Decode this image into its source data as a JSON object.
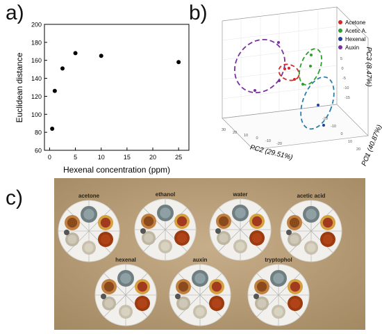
{
  "panels": {
    "a": "a)",
    "b": "b)",
    "c": "c)"
  },
  "chart_data": [
    {
      "type": "scatter",
      "x": [
        0.5,
        1,
        2.5,
        5,
        10,
        25
      ],
      "y": [
        84,
        126,
        151,
        168,
        165,
        158
      ],
      "xlabel": "Hexenal concentration (ppm)",
      "ylabel": "Euclidean distance",
      "xlim": [
        -1,
        27
      ],
      "ylim": [
        60,
        200
      ],
      "xticks": [
        "0",
        "5",
        "10",
        "15",
        "20",
        "25"
      ],
      "yticks": [
        "60",
        "80",
        "100",
        "120",
        "140",
        "160",
        "180",
        "200"
      ],
      "grid": false,
      "marker_color": "#000000"
    },
    {
      "type": "scatter",
      "xlabel": "PC2 (29.51%)",
      "ylabel": "PC1 (40.87%)",
      "zlabel": "PC3 (8.47%)",
      "legend_position": "top-right",
      "series": [
        {
          "name": "Acetone",
          "color": "#d62728"
        },
        {
          "name": "Acetic A.",
          "color": "#2ca02c"
        },
        {
          "name": "Hexenal",
          "color": "#1f3f9f"
        },
        {
          "name": "Auxin",
          "color": "#7b2fa0"
        }
      ],
      "z_ticks": [
        "5",
        "0",
        "-5",
        "-10",
        "-15"
      ],
      "pc2_ticks": [
        "30",
        "20",
        "10",
        "0",
        "-10",
        "-20"
      ],
      "pc1_ticks": [
        "-20",
        "-10",
        "0",
        "10",
        "20",
        "30"
      ]
    }
  ],
  "photo": {
    "labels": [
      "acetone",
      "ethanol",
      "water",
      "acetic acid",
      "hexenal",
      "auxin",
      "tryptophol"
    ]
  }
}
